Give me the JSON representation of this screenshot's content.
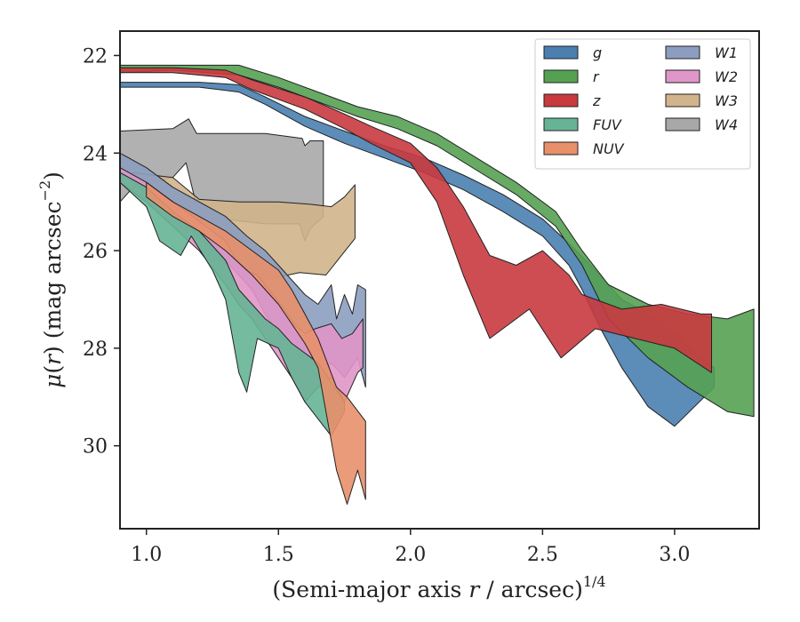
{
  "chart_data": {
    "type": "area",
    "title": "",
    "xlabel": "(Semi-major axis r / arcsec)",
    "xlabel_parts": {
      "pre": "(Semi-major axis ",
      "var": "r",
      "post": " / arcsec)",
      "sup": "1/4"
    },
    "ylabel": "μ(r) (mag arcsec−2)",
    "ylabel_parts": {
      "mu": "μ",
      "open": "(",
      "var": "r",
      "mid": ") (mag arcsec",
      "sup": "−2",
      "close": ")"
    },
    "xlim": [
      0.9,
      3.32
    ],
    "ylim": [
      31.7,
      21.5
    ],
    "y_inverted": true,
    "xticks": [
      1.0,
      1.5,
      2.0,
      2.5,
      3.0
    ],
    "xtick_labels": [
      "1.0",
      "1.5",
      "2.0",
      "2.5",
      "3.0"
    ],
    "yticks": [
      22,
      24,
      26,
      28,
      30
    ],
    "ytick_labels": [
      "22",
      "24",
      "26",
      "28",
      "30"
    ],
    "grid": false,
    "legend_position": "top-right",
    "legend_columns": 2,
    "series": [
      {
        "name": "W4",
        "color": "#a8a8a8",
        "upper": [
          [
            0.9,
            23.55
          ],
          [
            1.1,
            23.5
          ],
          [
            1.16,
            23.3
          ],
          [
            1.19,
            23.6
          ],
          [
            1.45,
            23.6
          ],
          [
            1.59,
            23.7
          ],
          [
            1.6,
            23.85
          ],
          [
            1.62,
            23.75
          ],
          [
            1.67,
            23.75
          ],
          [
            1.67,
            24.95
          ],
          [
            1.67,
            25.3
          ]
        ],
        "lower": [
          [
            0.9,
            25.0
          ],
          [
            0.95,
            24.7
          ],
          [
            1.1,
            24.5
          ],
          [
            1.15,
            24.2
          ],
          [
            1.2,
            25.3
          ],
          [
            1.45,
            25.45
          ],
          [
            1.58,
            25.45
          ],
          [
            1.6,
            25.8
          ],
          [
            1.62,
            25.55
          ],
          [
            1.67,
            25.3
          ]
        ]
      },
      {
        "name": "W3",
        "color": "#d2b48c",
        "upper": [
          [
            0.95,
            24.4
          ],
          [
            1.02,
            24.45
          ],
          [
            1.1,
            24.5
          ],
          [
            1.2,
            24.95
          ],
          [
            1.35,
            25.0
          ],
          [
            1.5,
            25.0
          ],
          [
            1.62,
            25.05
          ],
          [
            1.7,
            25.1
          ],
          [
            1.75,
            24.9
          ],
          [
            1.79,
            24.65
          ]
        ],
        "lower": [
          [
            0.95,
            24.6
          ],
          [
            1.1,
            25.3
          ],
          [
            1.25,
            25.9
          ],
          [
            1.35,
            26.3
          ],
          [
            1.45,
            26.6
          ],
          [
            1.58,
            26.45
          ],
          [
            1.68,
            26.5
          ],
          [
            1.79,
            25.75
          ]
        ]
      },
      {
        "name": "W1",
        "color": "#8c9dc0",
        "upper": [
          [
            0.9,
            24.0
          ],
          [
            1.0,
            24.3
          ],
          [
            1.1,
            24.7
          ],
          [
            1.2,
            25.0
          ],
          [
            1.3,
            25.3
          ],
          [
            1.38,
            25.7
          ],
          [
            1.45,
            26.0
          ],
          [
            1.5,
            26.3
          ],
          [
            1.55,
            26.6
          ],
          [
            1.6,
            26.9
          ],
          [
            1.65,
            27.1
          ],
          [
            1.7,
            26.7
          ],
          [
            1.72,
            27.4
          ],
          [
            1.75,
            26.9
          ],
          [
            1.78,
            27.3
          ],
          [
            1.8,
            26.7
          ],
          [
            1.83,
            26.8
          ],
          [
            1.83,
            28.8
          ]
        ],
        "lower": [
          [
            0.9,
            24.4
          ],
          [
            1.0,
            24.8
          ],
          [
            1.1,
            25.3
          ],
          [
            1.2,
            25.7
          ],
          [
            1.3,
            26.2
          ],
          [
            1.4,
            26.8
          ],
          [
            1.45,
            27.3
          ],
          [
            1.5,
            27.7
          ],
          [
            1.55,
            28.0
          ],
          [
            1.6,
            28.3
          ],
          [
            1.65,
            28.6
          ],
          [
            1.7,
            28.3
          ],
          [
            1.75,
            28.6
          ],
          [
            1.8,
            28.2
          ],
          [
            1.83,
            28.8
          ]
        ]
      },
      {
        "name": "W2",
        "color": "#e096c8",
        "upper": [
          [
            0.9,
            24.3
          ],
          [
            1.0,
            24.6
          ],
          [
            1.1,
            25.0
          ],
          [
            1.2,
            25.4
          ],
          [
            1.3,
            25.8
          ],
          [
            1.34,
            26.2
          ],
          [
            1.38,
            26.4
          ],
          [
            1.42,
            26.5
          ],
          [
            1.48,
            26.9
          ],
          [
            1.52,
            27.2
          ],
          [
            1.56,
            27.5
          ],
          [
            1.6,
            27.7
          ],
          [
            1.64,
            27.6
          ],
          [
            1.7,
            27.5
          ],
          [
            1.74,
            27.8
          ],
          [
            1.78,
            27.7
          ],
          [
            1.82,
            27.4
          ]
        ],
        "lower": [
          [
            0.9,
            24.6
          ],
          [
            1.0,
            25.0
          ],
          [
            1.1,
            25.5
          ],
          [
            1.2,
            26.0
          ],
          [
            1.3,
            26.7
          ],
          [
            1.35,
            27.1
          ],
          [
            1.4,
            27.4
          ],
          [
            1.45,
            27.8
          ],
          [
            1.5,
            28.2
          ],
          [
            1.55,
            28.6
          ],
          [
            1.6,
            29.1
          ],
          [
            1.65,
            28.8
          ],
          [
            1.7,
            28.6
          ],
          [
            1.75,
            29.1
          ],
          [
            1.8,
            28.5
          ],
          [
            1.82,
            28.4
          ]
        ]
      },
      {
        "name": "FUV",
        "color": "#66b495",
        "upper": [
          [
            0.9,
            24.4
          ],
          [
            1.0,
            24.7
          ],
          [
            1.1,
            25.2
          ],
          [
            1.2,
            25.6
          ],
          [
            1.3,
            26.2
          ],
          [
            1.35,
            26.8
          ],
          [
            1.4,
            27.1
          ],
          [
            1.45,
            27.4
          ],
          [
            1.5,
            27.6
          ],
          [
            1.55,
            27.9
          ],
          [
            1.6,
            28.1
          ],
          [
            1.65,
            28.3
          ],
          [
            1.7,
            28.7
          ],
          [
            1.75,
            29.1
          ]
        ],
        "lower": [
          [
            0.9,
            24.6
          ],
          [
            1.0,
            25.1
          ],
          [
            1.05,
            25.8
          ],
          [
            1.13,
            26.1
          ],
          [
            1.17,
            25.7
          ],
          [
            1.25,
            26.4
          ],
          [
            1.3,
            27.0
          ],
          [
            1.35,
            28.5
          ],
          [
            1.38,
            28.9
          ],
          [
            1.42,
            27.8
          ],
          [
            1.5,
            28.0
          ],
          [
            1.55,
            28.6
          ],
          [
            1.6,
            29.1
          ],
          [
            1.7,
            29.8
          ],
          [
            1.75,
            29.3
          ]
        ]
      },
      {
        "name": "NUV",
        "color": "#e8906a",
        "upper": [
          [
            1.0,
            24.6
          ],
          [
            1.1,
            25.0
          ],
          [
            1.2,
            25.3
          ],
          [
            1.3,
            25.6
          ],
          [
            1.4,
            26.0
          ],
          [
            1.5,
            26.4
          ],
          [
            1.55,
            26.8
          ],
          [
            1.6,
            27.3
          ],
          [
            1.65,
            27.8
          ],
          [
            1.72,
            28.8
          ],
          [
            1.76,
            29.0
          ],
          [
            1.83,
            29.5
          ]
        ],
        "lower": [
          [
            1.0,
            24.9
          ],
          [
            1.1,
            25.3
          ],
          [
            1.2,
            25.6
          ],
          [
            1.3,
            26.0
          ],
          [
            1.4,
            26.5
          ],
          [
            1.5,
            27.1
          ],
          [
            1.55,
            27.5
          ],
          [
            1.6,
            27.9
          ],
          [
            1.65,
            28.4
          ],
          [
            1.72,
            30.5
          ],
          [
            1.76,
            31.2
          ],
          [
            1.8,
            30.5
          ],
          [
            1.83,
            31.1
          ]
        ]
      },
      {
        "name": "g",
        "color": "#4a7fb0",
        "upper": [
          [
            0.9,
            22.55
          ],
          [
            1.2,
            22.55
          ],
          [
            1.35,
            22.6
          ],
          [
            1.45,
            22.85
          ],
          [
            1.6,
            23.25
          ],
          [
            1.75,
            23.55
          ],
          [
            1.9,
            23.85
          ],
          [
            2.05,
            24.1
          ],
          [
            2.2,
            24.45
          ],
          [
            2.35,
            24.85
          ],
          [
            2.5,
            25.35
          ],
          [
            2.6,
            25.85
          ],
          [
            2.7,
            26.4
          ],
          [
            2.8,
            27.0
          ],
          [
            2.9,
            27.3
          ],
          [
            3.0,
            27.7
          ],
          [
            3.1,
            28.2
          ],
          [
            3.15,
            28.4
          ]
        ],
        "lower": [
          [
            0.9,
            22.65
          ],
          [
            1.2,
            22.65
          ],
          [
            1.35,
            22.75
          ],
          [
            1.45,
            23.0
          ],
          [
            1.6,
            23.45
          ],
          [
            1.75,
            23.8
          ],
          [
            1.9,
            24.1
          ],
          [
            2.05,
            24.4
          ],
          [
            2.2,
            24.75
          ],
          [
            2.35,
            25.2
          ],
          [
            2.5,
            25.7
          ],
          [
            2.6,
            26.3
          ],
          [
            2.65,
            26.8
          ],
          [
            2.72,
            27.6
          ],
          [
            2.8,
            28.4
          ],
          [
            2.9,
            29.2
          ],
          [
            3.0,
            29.6
          ],
          [
            3.15,
            28.8
          ]
        ]
      },
      {
        "name": "r",
        "color": "#55a152",
        "upper": [
          [
            0.9,
            22.2
          ],
          [
            1.1,
            22.2
          ],
          [
            1.35,
            22.2
          ],
          [
            1.5,
            22.45
          ],
          [
            1.65,
            22.75
          ],
          [
            1.8,
            23.05
          ],
          [
            1.95,
            23.25
          ],
          [
            2.1,
            23.6
          ],
          [
            2.25,
            24.1
          ],
          [
            2.4,
            24.6
          ],
          [
            2.55,
            25.2
          ],
          [
            2.65,
            26.0
          ],
          [
            2.75,
            26.7
          ],
          [
            2.9,
            27.1
          ],
          [
            3.05,
            27.3
          ],
          [
            3.2,
            27.4
          ],
          [
            3.3,
            27.2
          ]
        ],
        "lower": [
          [
            0.9,
            22.35
          ],
          [
            1.1,
            22.3
          ],
          [
            1.35,
            22.4
          ],
          [
            1.5,
            22.65
          ],
          [
            1.65,
            22.95
          ],
          [
            1.8,
            23.25
          ],
          [
            1.95,
            23.5
          ],
          [
            2.1,
            23.85
          ],
          [
            2.25,
            24.35
          ],
          [
            2.4,
            24.85
          ],
          [
            2.55,
            25.5
          ],
          [
            2.65,
            26.3
          ],
          [
            2.75,
            27.4
          ],
          [
            2.9,
            28.2
          ],
          [
            3.05,
            28.8
          ],
          [
            3.2,
            29.3
          ],
          [
            3.3,
            29.4
          ]
        ]
      },
      {
        "name": "z",
        "color": "#c93a3f",
        "upper": [
          [
            0.9,
            22.25
          ],
          [
            1.1,
            22.25
          ],
          [
            1.3,
            22.3
          ],
          [
            1.4,
            22.5
          ],
          [
            1.6,
            22.85
          ],
          [
            1.75,
            23.2
          ],
          [
            1.85,
            23.45
          ],
          [
            2.0,
            23.8
          ],
          [
            2.1,
            24.3
          ],
          [
            2.2,
            25.1
          ],
          [
            2.3,
            26.1
          ],
          [
            2.4,
            26.3
          ],
          [
            2.5,
            26.0
          ],
          [
            2.6,
            26.5
          ],
          [
            2.65,
            26.9
          ],
          [
            2.8,
            27.2
          ],
          [
            2.95,
            27.1
          ],
          [
            3.1,
            27.3
          ],
          [
            3.14,
            27.3
          ]
        ],
        "lower": [
          [
            0.9,
            22.35
          ],
          [
            1.1,
            22.35
          ],
          [
            1.3,
            22.45
          ],
          [
            1.4,
            22.7
          ],
          [
            1.6,
            23.1
          ],
          [
            1.75,
            23.5
          ],
          [
            1.85,
            23.8
          ],
          [
            2.0,
            24.2
          ],
          [
            2.1,
            25.0
          ],
          [
            2.2,
            26.5
          ],
          [
            2.3,
            27.8
          ],
          [
            2.45,
            27.2
          ],
          [
            2.57,
            28.2
          ],
          [
            2.7,
            27.6
          ],
          [
            2.85,
            27.8
          ],
          [
            3.0,
            28.0
          ],
          [
            3.14,
            28.5
          ]
        ]
      }
    ],
    "legend_order": [
      "g",
      "r",
      "z",
      "FUV",
      "NUV",
      "W1",
      "W2",
      "W3",
      "W4"
    ]
  }
}
